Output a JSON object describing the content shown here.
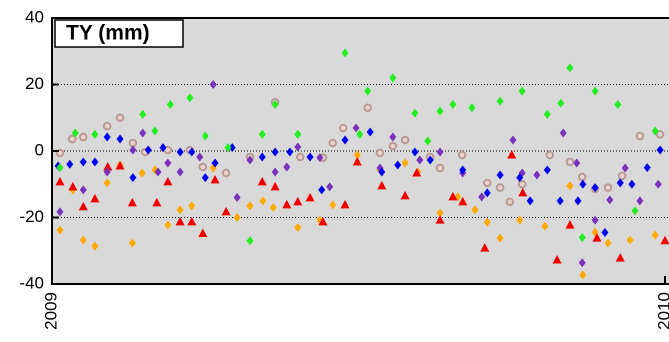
{
  "chart_data": {
    "type": "scatter",
    "title": "TY (mm)",
    "xlim": [
      2009,
      2010
    ],
    "xticks": [
      2009,
      2010
    ],
    "ylim": [
      -40,
      40
    ],
    "yticks": [
      -40,
      -20,
      0,
      20,
      40
    ],
    "grid": true,
    "background": "#d9d9d9",
    "series": [
      {
        "color": "#b89a96",
        "marker": "circle",
        "x": [
          2009.013,
          2009.033,
          2009.051,
          2009.09,
          2009.111,
          2009.132,
          2009.152,
          2009.189,
          2009.225,
          2009.246,
          2009.284,
          2009.323,
          2009.364,
          2009.405,
          2009.442,
          2009.458,
          2009.475,
          2009.515,
          2009.535,
          2009.556,
          2009.576,
          2009.617,
          2009.633,
          2009.669,
          2009.71,
          2009.731,
          2009.747,
          2009.767,
          2009.812,
          2009.845,
          2009.865,
          2009.886,
          2009.907,
          2009.93,
          2009.959,
          2009.992
        ],
        "values": [
          -0.6,
          3.6,
          4.2,
          7.5,
          10,
          2.4,
          -0.3,
          0.3,
          0.3,
          -4.8,
          -6.6,
          -1.8,
          14.7,
          -1.8,
          -2,
          2.4,
          6.9,
          13,
          -0.6,
          1.5,
          3.3,
          -1.8,
          -5.1,
          -1.2,
          -9.6,
          -11,
          -15.3,
          -10,
          -1.2,
          -3.3,
          -7.8,
          -11.4,
          -11,
          -7.5,
          4.5,
          5
        ]
      },
      {
        "color": "#ffaa00",
        "marker": "diamond",
        "x": [
          2009.013,
          2009.034,
          2009.051,
          2009.07,
          2009.09,
          2009.111,
          2009.131,
          2009.147,
          2009.168,
          2009.189,
          2009.209,
          2009.228,
          2009.263,
          2009.302,
          2009.323,
          2009.344,
          2009.361,
          2009.401,
          2009.437,
          2009.458,
          2009.498,
          2009.535,
          2009.576,
          2009.597,
          2009.633,
          2009.662,
          2009.69,
          2009.71,
          2009.731,
          2009.763,
          2009.804,
          2009.845,
          2009.866,
          2009.886,
          2009.907,
          2009.943,
          2009.984
        ],
        "values": [
          -23.8,
          -11.7,
          -26.8,
          -28.6,
          -9.6,
          -4.2,
          -27.7,
          -6.6,
          -5.7,
          -22.3,
          -17.7,
          -16.5,
          -5.1,
          -20,
          -16.5,
          -15,
          -17,
          -23,
          -20.8,
          -16.2,
          -1.2,
          -5.7,
          -3.6,
          -6.3,
          -18.6,
          -13.8,
          -17.7,
          -21.4,
          -26.2,
          -20.8,
          -22.6,
          -10.5,
          -37.3,
          -24.4,
          -27.7,
          -26.8,
          -25.3
        ]
      },
      {
        "color": "#ee0000",
        "marker": "triangle",
        "x": [
          2009.013,
          2009.034,
          2009.051,
          2009.07,
          2009.091,
          2009.111,
          2009.131,
          2009.171,
          2009.189,
          2009.209,
          2009.228,
          2009.246,
          2009.266,
          2009.284,
          2009.343,
          2009.364,
          2009.383,
          2009.401,
          2009.421,
          2009.442,
          2009.478,
          2009.498,
          2009.538,
          2009.576,
          2009.595,
          2009.633,
          2009.654,
          2009.67,
          2009.706,
          2009.75,
          2009.768,
          2009.824,
          2009.845,
          2009.889,
          2009.927,
          2010.0
        ],
        "values": [
          -9.3,
          -10.8,
          -16.8,
          -14.4,
          -4.8,
          -4.5,
          -15.6,
          -15.6,
          -9.3,
          -21.3,
          -21.3,
          -24.8,
          -8.7,
          -18.3,
          -9.3,
          -10.8,
          -16.2,
          -15.3,
          -14.1,
          -21.3,
          -16.2,
          -3.3,
          -10.5,
          -13.5,
          -6.6,
          -20.8,
          -13.8,
          -15.3,
          -29.2,
          -1.2,
          -12.6,
          -32.8,
          -22.3,
          -26.2,
          -32.2,
          -27
        ]
      },
      {
        "color": "#7733bb",
        "marker": "diamond",
        "x": [
          2009.013,
          2009.051,
          2009.09,
          2009.132,
          2009.148,
          2009.173,
          2009.189,
          2009.209,
          2009.241,
          2009.263,
          2009.302,
          2009.323,
          2009.364,
          2009.383,
          2009.401,
          2009.437,
          2009.453,
          2009.496,
          2009.535,
          2009.556,
          2009.6,
          2009.633,
          2009.67,
          2009.701,
          2009.752,
          2009.767,
          2009.791,
          2009.834,
          2009.856,
          2009.865,
          2009.886,
          2009.91,
          2009.935,
          2009.959,
          2009.989
        ],
        "values": [
          -18.3,
          -11.7,
          -6.3,
          0.3,
          5.4,
          -6.3,
          -3.6,
          -6.3,
          -1.8,
          20,
          -14,
          -2.7,
          -6.3,
          -4.8,
          1.2,
          -2,
          -10.8,
          6.9,
          -5.1,
          4.2,
          -2.7,
          -0.3,
          -6.6,
          -13.8,
          3.3,
          -6.6,
          -7.2,
          5.4,
          -3.6,
          -33.6,
          -20.8,
          -14.7,
          -5.1,
          -15,
          -10
        ]
      },
      {
        "color": "#0000ee",
        "marker": "diamond",
        "x": [
          2009.01,
          2009.029,
          2009.051,
          2009.07,
          2009.09,
          2009.111,
          2009.132,
          2009.157,
          2009.181,
          2009.209,
          2009.228,
          2009.25,
          2009.266,
          2009.294,
          2009.343,
          2009.364,
          2009.388,
          2009.421,
          2009.44,
          2009.478,
          2009.519,
          2009.538,
          2009.564,
          2009.592,
          2009.617,
          2009.67,
          2009.71,
          2009.731,
          2009.763,
          2009.78,
          2009.808,
          2009.829,
          2009.858,
          2009.866,
          2009.886,
          2009.902,
          2009.927,
          2009.946,
          2009.971,
          2009.992
        ],
        "values": [
          -4.5,
          -4,
          -3.3,
          -3.3,
          4.2,
          3.6,
          -8,
          0.3,
          1,
          -0.3,
          -0.3,
          -8,
          -3.6,
          1,
          -1.8,
          -0.3,
          -0.3,
          -1.8,
          -11.7,
          3.3,
          5.7,
          -6.3,
          -4.2,
          -0.3,
          -2.7,
          -5.7,
          -12.6,
          -7.2,
          -8,
          -15,
          -5.7,
          -15,
          -15,
          -10,
          -11,
          -24.5,
          -9.6,
          -10,
          -5,
          0.3
        ]
      },
      {
        "color": "#22ee22",
        "marker": "diamond",
        "x": [
          2009.013,
          2009.038,
          2009.07,
          2009.148,
          2009.168,
          2009.193,
          2009.225,
          2009.25,
          2009.287,
          2009.323,
          2009.343,
          2009.364,
          2009.401,
          2009.478,
          2009.502,
          2009.515,
          2009.556,
          2009.592,
          2009.613,
          2009.633,
          2009.654,
          2009.685,
          2009.731,
          2009.767,
          2009.808,
          2009.83,
          2009.845,
          2009.865,
          2009.886,
          2009.923,
          2009.951,
          2009.984
        ],
        "values": [
          -5,
          5.4,
          5,
          11,
          6,
          14,
          16,
          4.5,
          1,
          -27,
          5,
          14,
          5,
          29.5,
          5,
          18,
          22,
          11.4,
          3,
          12,
          14,
          13,
          15,
          18,
          11,
          14.4,
          25,
          -26,
          18,
          14,
          -18,
          6
        ]
      }
    ]
  }
}
